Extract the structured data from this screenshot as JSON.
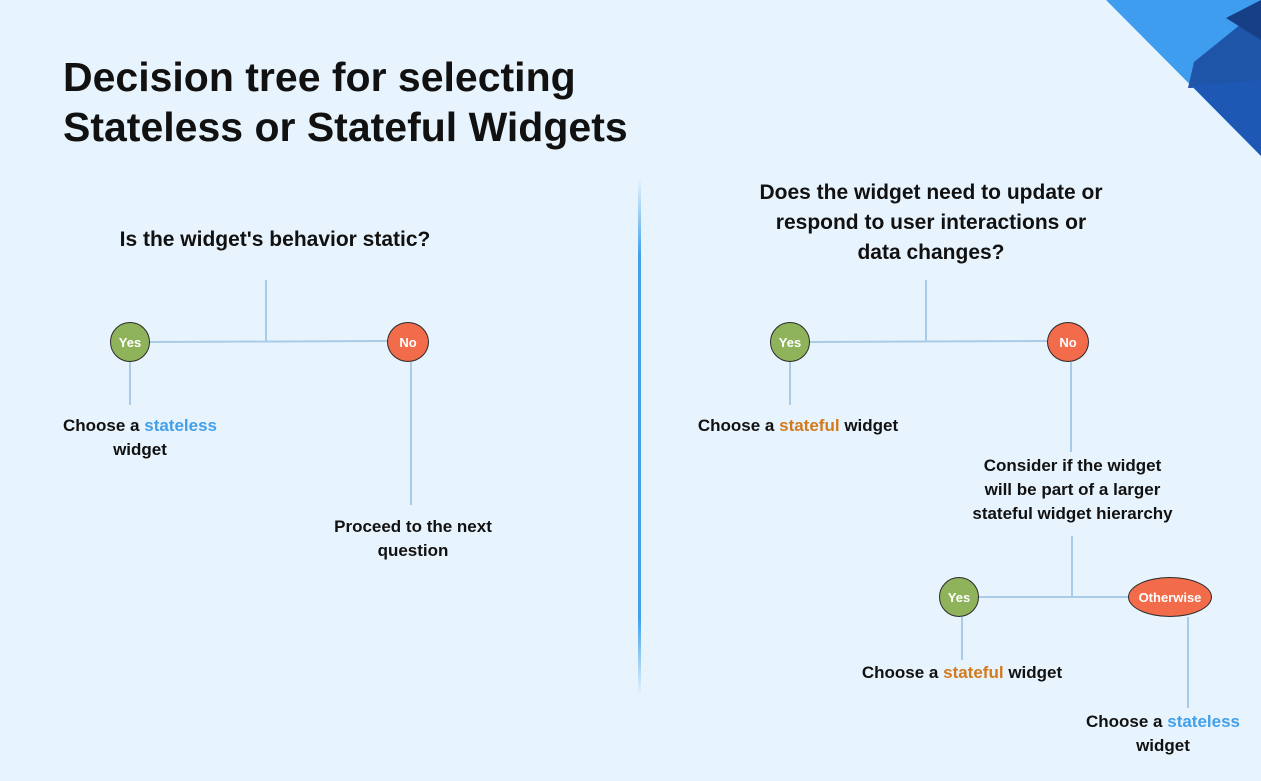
{
  "title": {
    "line1": "Decision tree for selecting",
    "line2": "Stateless or Stateful Widgets"
  },
  "colors": {
    "background": "#e8f4fd",
    "yes_node": "#8fb35a",
    "no_node": "#f26b4b",
    "connector": "#a9cbe8",
    "stateless_highlight": "#42a0ea",
    "stateful_highlight": "#d27b1e",
    "divider": "#42a0ea"
  },
  "left_tree": {
    "question": "Is the widget's behavior static?",
    "yes_label": "Yes",
    "no_label": "No",
    "yes_result": {
      "prefix": "Choose a",
      "highlight": "stateless",
      "suffix": "widget"
    },
    "no_result": {
      "line1": "Proceed to the next",
      "line2": "question"
    }
  },
  "right_tree": {
    "question": {
      "line1": "Does the widget need to update or",
      "line2": "respond to user interactions or",
      "line3": "data changes?"
    },
    "yes_label": "Yes",
    "no_label": "No",
    "yes_result": {
      "prefix": "Choose a",
      "highlight": "stateful",
      "suffix": "widget"
    },
    "sub_question": {
      "line1": "Consider if the widget",
      "line2": "will be part of a larger",
      "line3": "stateful widget hierarchy"
    },
    "sub_yes_label": "Yes",
    "sub_otherwise_label": "Otherwise",
    "sub_yes_result": {
      "prefix": "Choose a",
      "highlight": "stateful",
      "suffix": "widget"
    },
    "sub_otherwise_result": {
      "prefix": "Choose a",
      "highlight": "stateless",
      "suffix": "widget"
    }
  }
}
